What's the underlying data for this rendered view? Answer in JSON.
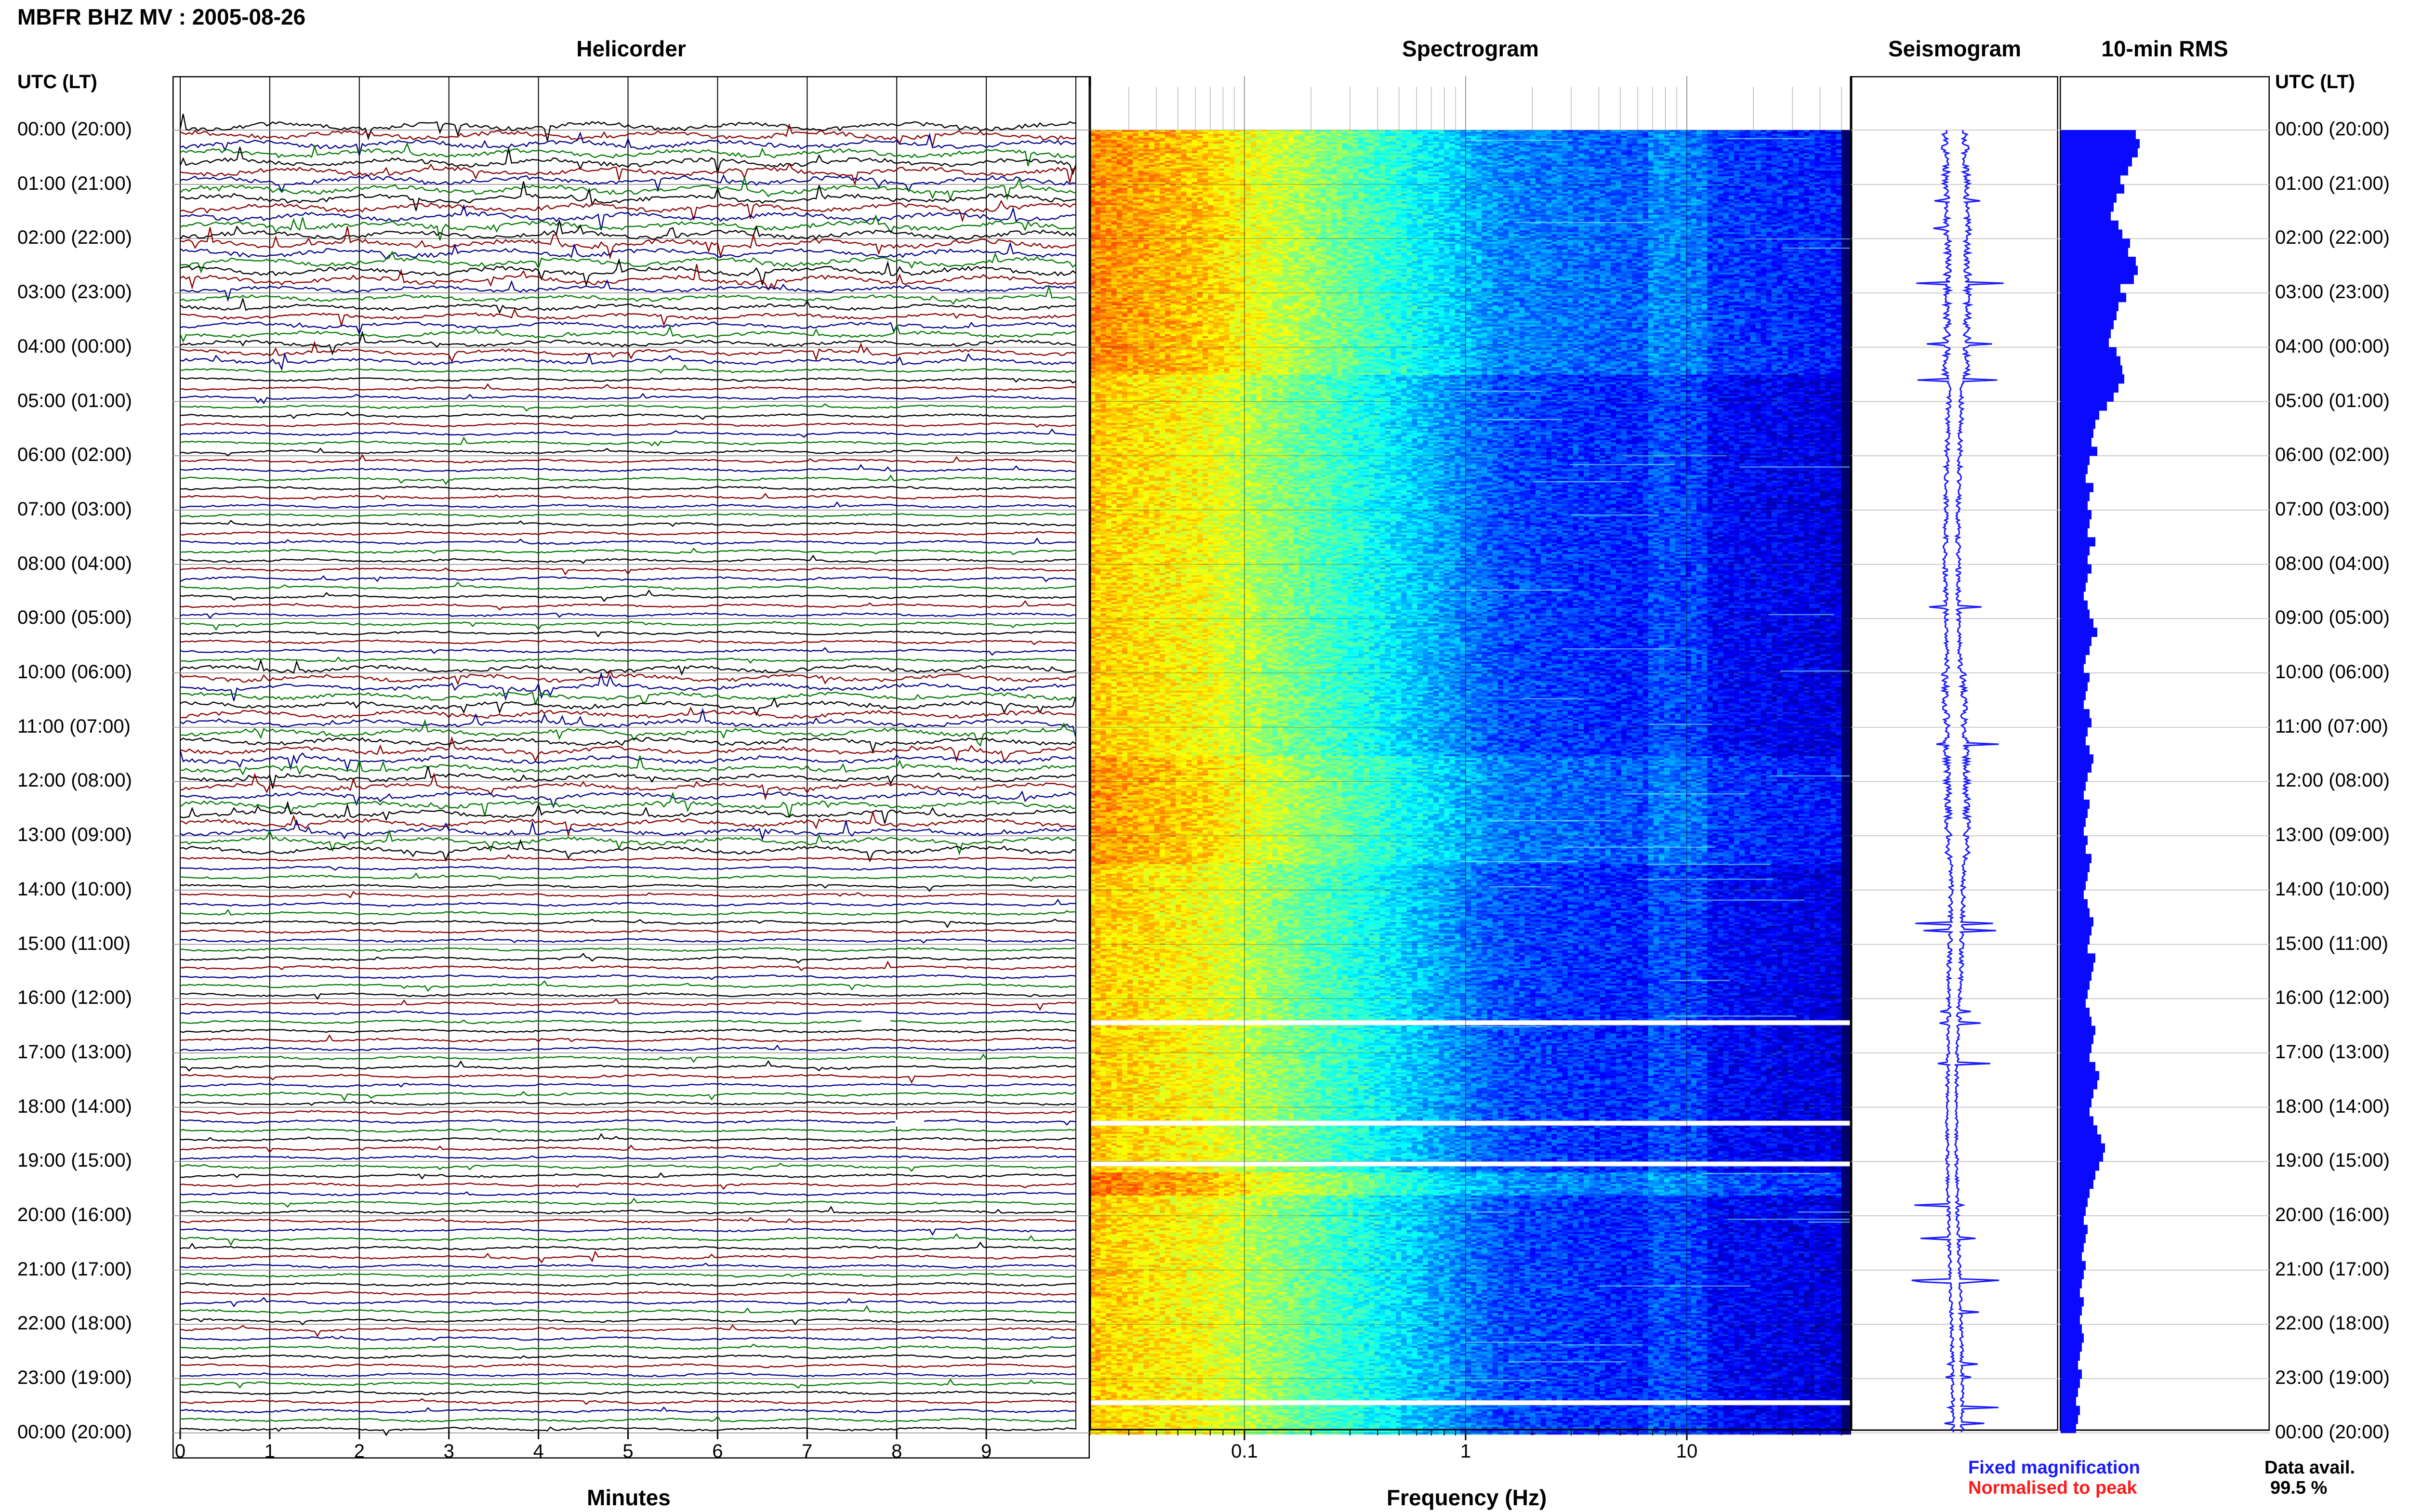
{
  "title": "MBFR BHZ MV : 2005-08-26",
  "panels": {
    "helicorder": "Helicorder",
    "spectrogram": "Spectrogram",
    "seismogram": "Seismogram",
    "rms": "10-min RMS"
  },
  "utc_label": "UTC (LT)",
  "row_labels": [
    "00:00 (20:00)",
    "01:00 (21:00)",
    "02:00 (22:00)",
    "03:00 (23:00)",
    "04:00 (00:00)",
    "05:00 (01:00)",
    "06:00 (02:00)",
    "07:00 (03:00)",
    "08:00 (04:00)",
    "09:00 (05:00)",
    "10:00 (06:00)",
    "11:00 (07:00)",
    "12:00 (08:00)",
    "13:00 (09:00)",
    "14:00 (10:00)",
    "15:00 (11:00)",
    "16:00 (12:00)",
    "17:00 (13:00)",
    "18:00 (14:00)",
    "19:00 (15:00)",
    "20:00 (16:00)",
    "21:00 (17:00)",
    "22:00 (18:00)",
    "23:00 (19:00)",
    "00:00 (20:00)"
  ],
  "footer": {
    "minutes_label": "Minutes",
    "frequency_label": "Frequency (Hz)",
    "fixed_mag": "Fixed magnification",
    "normalised": "Normalised to peak",
    "data_avail_label": "Data avail.",
    "data_avail_value": "99.5 %"
  },
  "colors": {
    "trace_black": "#000000",
    "trace_red": "#8b0000",
    "trace_blue": "#00008b",
    "trace_green": "#007a00",
    "seismo": "#1a1aff",
    "rms": "#0a0aff",
    "fixed_mag": "#1a1aff",
    "normalised": "#ff1a1a"
  },
  "chart_data": [
    {
      "type": "line",
      "xlabel": "Minutes",
      "x_ticks": [
        "0",
        "1",
        "2",
        "3",
        "4",
        "5",
        "6",
        "7",
        "8",
        "9"
      ],
      "xlim": [
        0,
        10
      ],
      "traces_per_hour": 6,
      "hours": 24,
      "trace_colors_cycle": [
        "black",
        "red",
        "blue",
        "green"
      ]
    },
    {
      "type": "heatmap",
      "xlabel": "Frequency (Hz)",
      "x_scale": "log",
      "x_ticks": [
        "0.1",
        "1",
        "10"
      ],
      "xlim": [
        0.02,
        50
      ],
      "gaps_utc_hours": [
        16.4,
        18.25,
        19.0,
        23.4
      ]
    },
    {
      "type": "line",
      "series": "seismogram envelope"
    },
    {
      "type": "bar",
      "orientation": "horizontal",
      "interval_minutes": 10,
      "values": [
        0.78,
        0.82,
        0.8,
        0.74,
        0.7,
        0.62,
        0.66,
        0.58,
        0.55,
        0.52,
        0.6,
        0.64,
        0.72,
        0.7,
        0.78,
        0.8,
        0.76,
        0.62,
        0.68,
        0.6,
        0.58,
        0.55,
        0.52,
        0.5,
        0.58,
        0.62,
        0.64,
        0.66,
        0.6,
        0.55,
        0.48,
        0.4,
        0.36,
        0.34,
        0.32,
        0.38,
        0.3,
        0.28,
        0.26,
        0.34,
        0.3,
        0.28,
        0.32,
        0.3,
        0.28,
        0.36,
        0.3,
        0.28,
        0.32,
        0.28,
        0.26,
        0.24,
        0.28,
        0.3,
        0.34,
        0.38,
        0.32,
        0.3,
        0.26,
        0.24,
        0.3,
        0.28,
        0.26,
        0.24,
        0.3,
        0.32,
        0.28,
        0.26,
        0.3,
        0.34,
        0.32,
        0.28,
        0.26,
        0.24,
        0.3,
        0.28,
        0.26,
        0.24,
        0.28,
        0.26,
        0.32,
        0.3,
        0.28,
        0.26,
        0.24,
        0.28,
        0.3,
        0.34,
        0.32,
        0.3,
        0.28,
        0.36,
        0.34,
        0.32,
        0.3,
        0.28,
        0.26,
        0.3,
        0.32,
        0.36,
        0.34,
        0.32,
        0.3,
        0.36,
        0.4,
        0.38,
        0.34,
        0.32,
        0.3,
        0.34,
        0.38,
        0.42,
        0.46,
        0.44,
        0.4,
        0.36,
        0.34,
        0.3,
        0.28,
        0.26,
        0.24,
        0.28,
        0.26,
        0.24,
        0.22,
        0.26,
        0.24,
        0.22,
        0.2,
        0.24,
        0.22,
        0.2,
        0.22,
        0.24,
        0.22,
        0.2,
        0.18,
        0.22,
        0.2,
        0.18,
        0.16,
        0.2,
        0.18,
        0.16
      ]
    }
  ]
}
